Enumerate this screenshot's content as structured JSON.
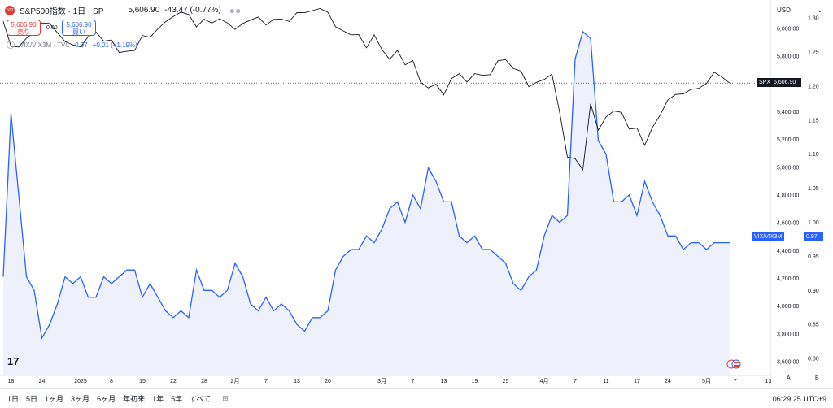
{
  "header": {
    "symbol_title": "S&P500指数 · 1日 · SP",
    "last_price": "5,606.90",
    "change": "-43.47 (-0.77%)",
    "symbol_badge": "500"
  },
  "trade": {
    "sell_price": "5,606.90",
    "sell_label": "売り",
    "spread": "0.00",
    "buy_price": "5,606.90",
    "buy_label": "買い"
  },
  "overlay_legend": {
    "name": "VIX/VIX3M · TVC",
    "value": "0.97",
    "change": "+0.01 (+1.19%)"
  },
  "axis": {
    "currency": "USD",
    "left_ticks": [
      "6,000.00",
      "5,800.00",
      "5,600.00",
      "5,400.00",
      "5,200.00",
      "5,000.00",
      "4,800.00",
      "4,600.00",
      "4,400.00",
      "4,200.00",
      "4,000.00",
      "3,800.00",
      "3,600.00"
    ],
    "right_ticks": [
      "1.30",
      "1.25",
      "1.20",
      "1.15",
      "1.10",
      "1.05",
      "1.00",
      "0.95",
      "0.90",
      "0.85",
      "0.80"
    ],
    "x_ticks": [
      "18",
      "24",
      "2025",
      "8",
      "15",
      "22",
      "28",
      "2月",
      "7",
      "13",
      "20",
      "3月",
      "7",
      "13",
      "19",
      "25",
      "4月",
      "7",
      "11",
      "17",
      "24",
      "5月",
      "7",
      "13"
    ],
    "right_btns": [
      "A",
      "B"
    ]
  },
  "price_tags": {
    "spx_label": "SPX",
    "spx_value": "5,606.90",
    "vix_label": "VIX/VIX3M",
    "vix_value": "0.97"
  },
  "bottom": {
    "timeframes": [
      "1日",
      "5日",
      "1ヶ月",
      "3ヶ月",
      "6ヶ月",
      "年初来",
      "1年",
      "5年",
      "すべて"
    ],
    "clock": "06:29:25 UTC+9"
  },
  "colors": {
    "spx_line": "#131722",
    "vix_line": "#2962ff",
    "vix_fill": "#eef1fc",
    "sell": "#e53935",
    "buy": "#2962ff"
  },
  "chart_data": {
    "type": "line",
    "x": [
      "2024-12-17",
      "2024-12-18",
      "2024-12-19",
      "2024-12-20",
      "2024-12-23",
      "2024-12-24",
      "2024-12-26",
      "2024-12-27",
      "2024-12-30",
      "2024-12-31",
      "2025-01-02",
      "2025-01-03",
      "2025-01-06",
      "2025-01-07",
      "2025-01-08",
      "2025-01-10",
      "2025-01-13",
      "2025-01-14",
      "2025-01-15",
      "2025-01-16",
      "2025-01-17",
      "2025-01-21",
      "2025-01-22",
      "2025-01-23",
      "2025-01-24",
      "2025-01-27",
      "2025-01-28",
      "2025-01-29",
      "2025-01-30",
      "2025-01-31",
      "2025-02-03",
      "2025-02-04",
      "2025-02-05",
      "2025-02-06",
      "2025-02-07",
      "2025-02-10",
      "2025-02-11",
      "2025-02-12",
      "2025-02-13",
      "2025-02-14",
      "2025-02-18",
      "2025-02-19",
      "2025-02-20",
      "2025-02-21",
      "2025-02-24",
      "2025-02-25",
      "2025-02-26",
      "2025-02-27",
      "2025-02-28",
      "2025-03-03",
      "2025-03-04",
      "2025-03-05",
      "2025-03-06",
      "2025-03-07",
      "2025-03-10",
      "2025-03-11",
      "2025-03-12",
      "2025-03-13",
      "2025-03-14",
      "2025-03-17",
      "2025-03-18",
      "2025-03-19",
      "2025-03-20",
      "2025-03-21",
      "2025-03-24",
      "2025-03-25",
      "2025-03-26",
      "2025-03-27",
      "2025-03-28",
      "2025-03-31",
      "2025-04-01",
      "2025-04-02",
      "2025-04-03",
      "2025-04-04",
      "2025-04-07",
      "2025-04-08",
      "2025-04-09",
      "2025-04-10",
      "2025-04-11",
      "2025-04-14",
      "2025-04-15",
      "2025-04-16",
      "2025-04-17",
      "2025-04-21",
      "2025-04-22",
      "2025-04-23",
      "2025-04-24",
      "2025-04-25",
      "2025-04-28",
      "2025-04-29",
      "2025-04-30",
      "2025-05-01",
      "2025-05-02",
      "2025-05-05",
      "2025-05-06"
    ],
    "series": [
      {
        "name": "SPX",
        "axis": "left",
        "values": [
          6050,
          5872,
          5867,
          5930,
          5974,
          6040,
          6037,
          5970,
          5906,
          5882,
          5868,
          5942,
          5975,
          5909,
          5918,
          5827,
          5836,
          5842,
          5950,
          5937,
          5997,
          6049,
          6086,
          6119,
          6101,
          6012,
          6067,
          6039,
          6071,
          6040,
          5994,
          6037,
          6061,
          6083,
          6026,
          6066,
          6068,
          6051,
          6115,
          6114,
          6129,
          6144,
          6117,
          6013,
          5983,
          5955,
          5956,
          5861,
          5954,
          5849,
          5778,
          5843,
          5738,
          5770,
          5614,
          5572,
          5599,
          5522,
          5639,
          5675,
          5615,
          5675,
          5663,
          5667,
          5767,
          5777,
          5712,
          5693,
          5581,
          5612,
          5633,
          5671,
          5396,
          5074,
          5062,
          4982,
          5457,
          5268,
          5363,
          5406,
          5396,
          5275,
          5283,
          5158,
          5287,
          5376,
          5485,
          5525,
          5529,
          5561,
          5569,
          5604,
          5686,
          5650,
          5607
        ]
      },
      {
        "name": "VIX/VIX3M",
        "axis": "right",
        "values": [
          0.92,
          1.16,
          1.04,
          0.92,
          0.9,
          0.83,
          0.85,
          0.88,
          0.92,
          0.91,
          0.92,
          0.89,
          0.89,
          0.92,
          0.91,
          0.92,
          0.93,
          0.93,
          0.89,
          0.91,
          0.89,
          0.87,
          0.86,
          0.87,
          0.86,
          0.93,
          0.9,
          0.9,
          0.89,
          0.9,
          0.94,
          0.92,
          0.88,
          0.87,
          0.89,
          0.87,
          0.88,
          0.87,
          0.85,
          0.84,
          0.86,
          0.86,
          0.87,
          0.93,
          0.95,
          0.96,
          0.96,
          0.98,
          0.97,
          0.99,
          1.02,
          1.03,
          1.0,
          1.04,
          1.02,
          1.08,
          1.06,
          1.03,
          1.03,
          0.98,
          0.97,
          0.98,
          0.96,
          0.96,
          0.95,
          0.94,
          0.91,
          0.9,
          0.92,
          0.93,
          0.98,
          1.01,
          1.0,
          1.01,
          1.24,
          1.28,
          1.27,
          1.12,
          1.1,
          1.03,
          1.03,
          1.04,
          1.01,
          1.06,
          1.03,
          1.01,
          0.98,
          0.98,
          0.96,
          0.97,
          0.97,
          0.96,
          0.97,
          0.97,
          0.97
        ]
      }
    ],
    "y_left": {
      "min": 3500,
      "max": 6100
    },
    "y_right": {
      "min": 0.775,
      "max": 1.305
    },
    "grid": false
  }
}
